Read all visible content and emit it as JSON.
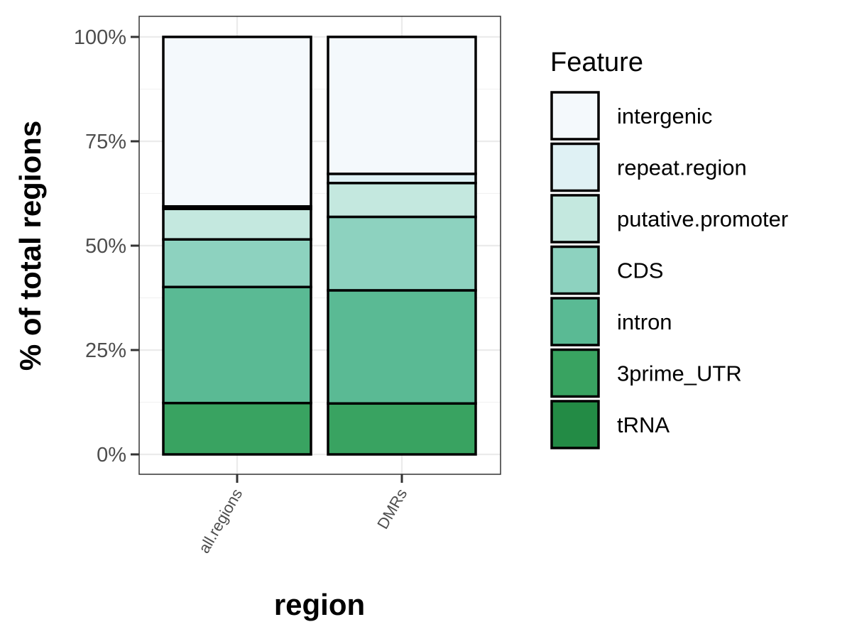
{
  "chart_data": {
    "type": "bar",
    "stacked": true,
    "categories": [
      "all.regions",
      "DMRs"
    ],
    "xlabel": "region",
    "ylabel": "% of total regions",
    "ylim": [
      0,
      100
    ],
    "yticks": [
      "0%",
      "25%",
      "50%",
      "75%",
      "100%"
    ],
    "ytick_values": [
      0,
      25,
      50,
      75,
      100
    ],
    "grid": true,
    "legend": {
      "title": "Feature",
      "position": "right"
    },
    "series": [
      {
        "name": "tRNA",
        "color": "#238b45",
        "values": [
          0.0,
          0.0
        ]
      },
      {
        "name": "3prime_UTR",
        "color": "#39a361",
        "values": [
          12.3,
          12.2
        ]
      },
      {
        "name": "intron",
        "color": "#5aba94",
        "values": [
          27.8,
          27.1
        ]
      },
      {
        "name": "CDS",
        "color": "#8dd2bf",
        "values": [
          11.4,
          17.6
        ]
      },
      {
        "name": "putative.promoter",
        "color": "#c4e8df",
        "values": [
          7.3,
          8.1
        ]
      },
      {
        "name": "repeat.region",
        "color": "#dff1f4",
        "values": [
          0.6,
          2.2
        ]
      },
      {
        "name": "intergenic",
        "color": "#f4f9fc",
        "values": [
          40.6,
          32.8
        ]
      }
    ]
  }
}
